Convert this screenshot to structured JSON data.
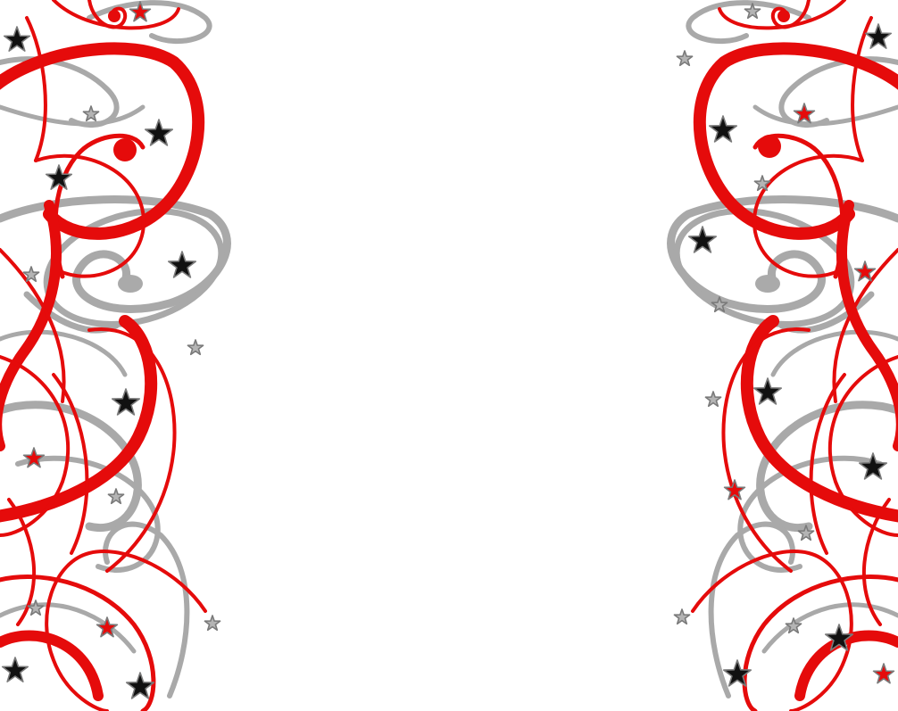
{
  "background": {
    "description_free": true,
    "colors": {
      "background": "#ffffff",
      "ribbon_red": "#e50b0b",
      "ribbon_grey": "#a9a9a9",
      "star_black": "#111111",
      "star_red": "#e50b0b",
      "star_grey": "#b4b4b4",
      "star_outline": "#7a7a7a"
    },
    "icons": [
      "star-icon",
      "swirl-ribbon"
    ]
  }
}
